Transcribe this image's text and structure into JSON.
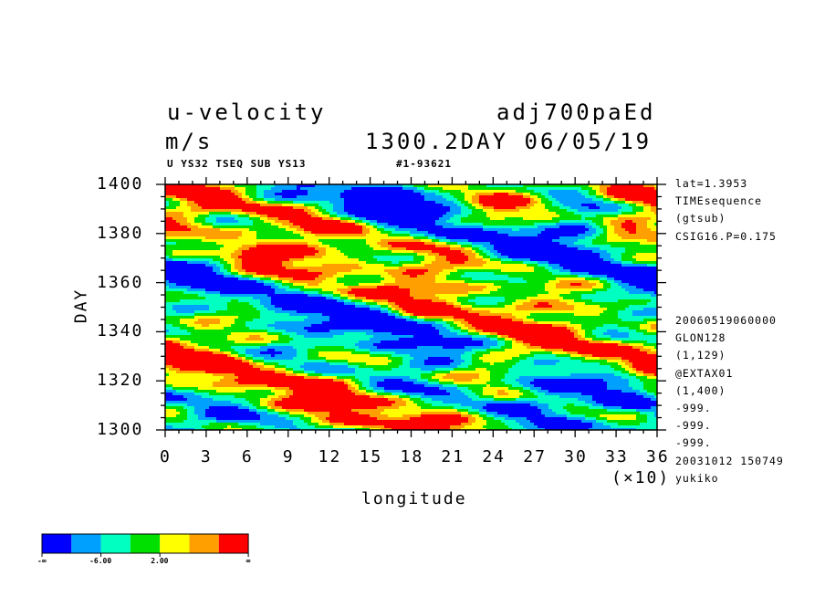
{
  "header": {
    "title_left": "u-velocity",
    "title_right": "adj700paEd",
    "units": "m/s",
    "time_info": "1300.2DAY 06/05/19",
    "subtitle_left": "U YS32 TSEQ SUB YS13",
    "subtitle_right": "#1-93621"
  },
  "side_info": {
    "top": [
      "lat=1.3953",
      "TIMEsequence",
      "(gtsub)",
      "CSIG16.P=0.175"
    ],
    "bottom": [
      "20060519060000",
      "GLON128",
      "(1,129)",
      "@EXTAX01",
      "(1,400)",
      "-999.",
      "-999.",
      "-999.",
      "20031012 150749",
      "yukiko"
    ]
  },
  "chart_data": {
    "type": "heatmap",
    "xlabel": "longitude",
    "x_multiplier_label": "(×10)",
    "ylabel": "DAY",
    "xlim": [
      0,
      36
    ],
    "ylim": [
      1300,
      1400
    ],
    "x_ticks": [
      0,
      3,
      6,
      9,
      12,
      15,
      18,
      21,
      24,
      27,
      30,
      33,
      36
    ],
    "y_ticks": [
      1300,
      1320,
      1340,
      1360,
      1380,
      1400
    ],
    "levels": [
      "-∞",
      "-6.00",
      "2.00",
      "∞"
    ],
    "colors": [
      "#0000ff",
      "#00a0ff",
      "#00ffc0",
      "#00e000",
      "#ffff00",
      "#ffa000",
      "#ff0000"
    ]
  }
}
